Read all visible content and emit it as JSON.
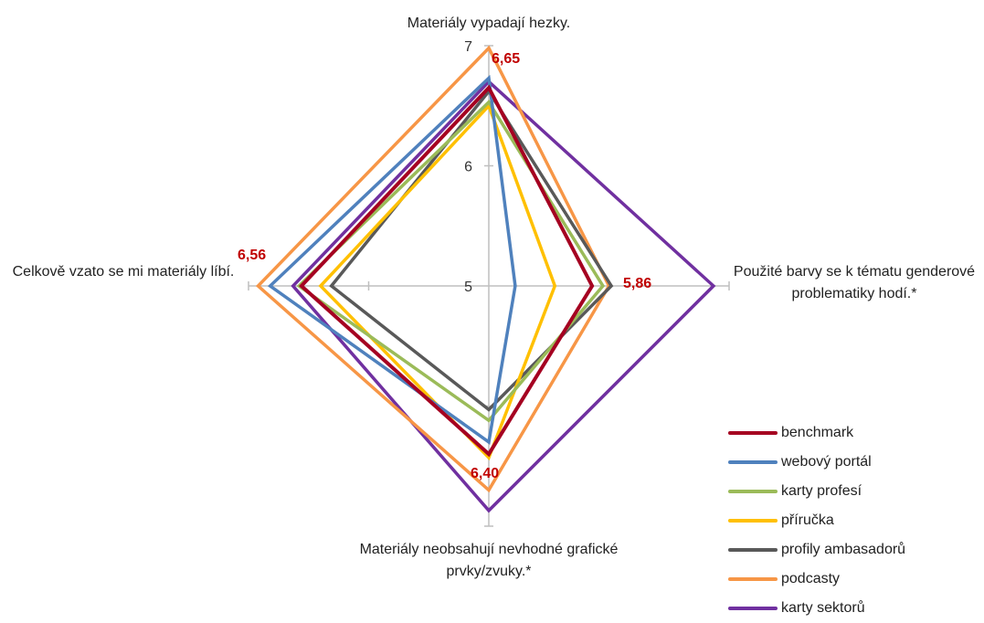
{
  "chart_data": {
    "type": "radar",
    "axes": [
      "Materiály vypadají hezky.",
      "Použité barvy se k tématu genderové problematiky hodí.*",
      "Materiály neobsahují nevhodné grafické prvky/zvuky.*",
      "Celkově vzato se mi materiály líbí."
    ],
    "rlim": [
      5,
      7
    ],
    "ticks": [
      "5",
      "6",
      "7"
    ],
    "series": [
      {
        "name": "benchmark",
        "color": "#a50021",
        "values": [
          6.65,
          5.86,
          6.4,
          6.56
        ]
      },
      {
        "name": "webový portál",
        "color": "#4f81bd",
        "values": [
          6.73,
          5.22,
          6.3,
          6.82
        ]
      },
      {
        "name": "karty profesí",
        "color": "#9bbb59",
        "values": [
          6.53,
          5.95,
          6.12,
          6.58
        ]
      },
      {
        "name": "příručka",
        "color": "#ffc000",
        "values": [
          6.5,
          5.55,
          6.43,
          6.4
        ]
      },
      {
        "name": "profily ambasadorů",
        "color": "#595959",
        "values": [
          6.62,
          6.02,
          6.03,
          6.31
        ]
      },
      {
        "name": "podcasty",
        "color": "#f79646",
        "values": [
          6.98,
          6.0,
          6.7,
          6.92
        ]
      },
      {
        "name": "karty sektorů",
        "color": "#7030a0",
        "values": [
          6.7,
          6.87,
          6.87,
          6.63
        ]
      }
    ],
    "annotations": [
      "6,65",
      "5,86",
      "6,40",
      "6,56"
    ]
  }
}
